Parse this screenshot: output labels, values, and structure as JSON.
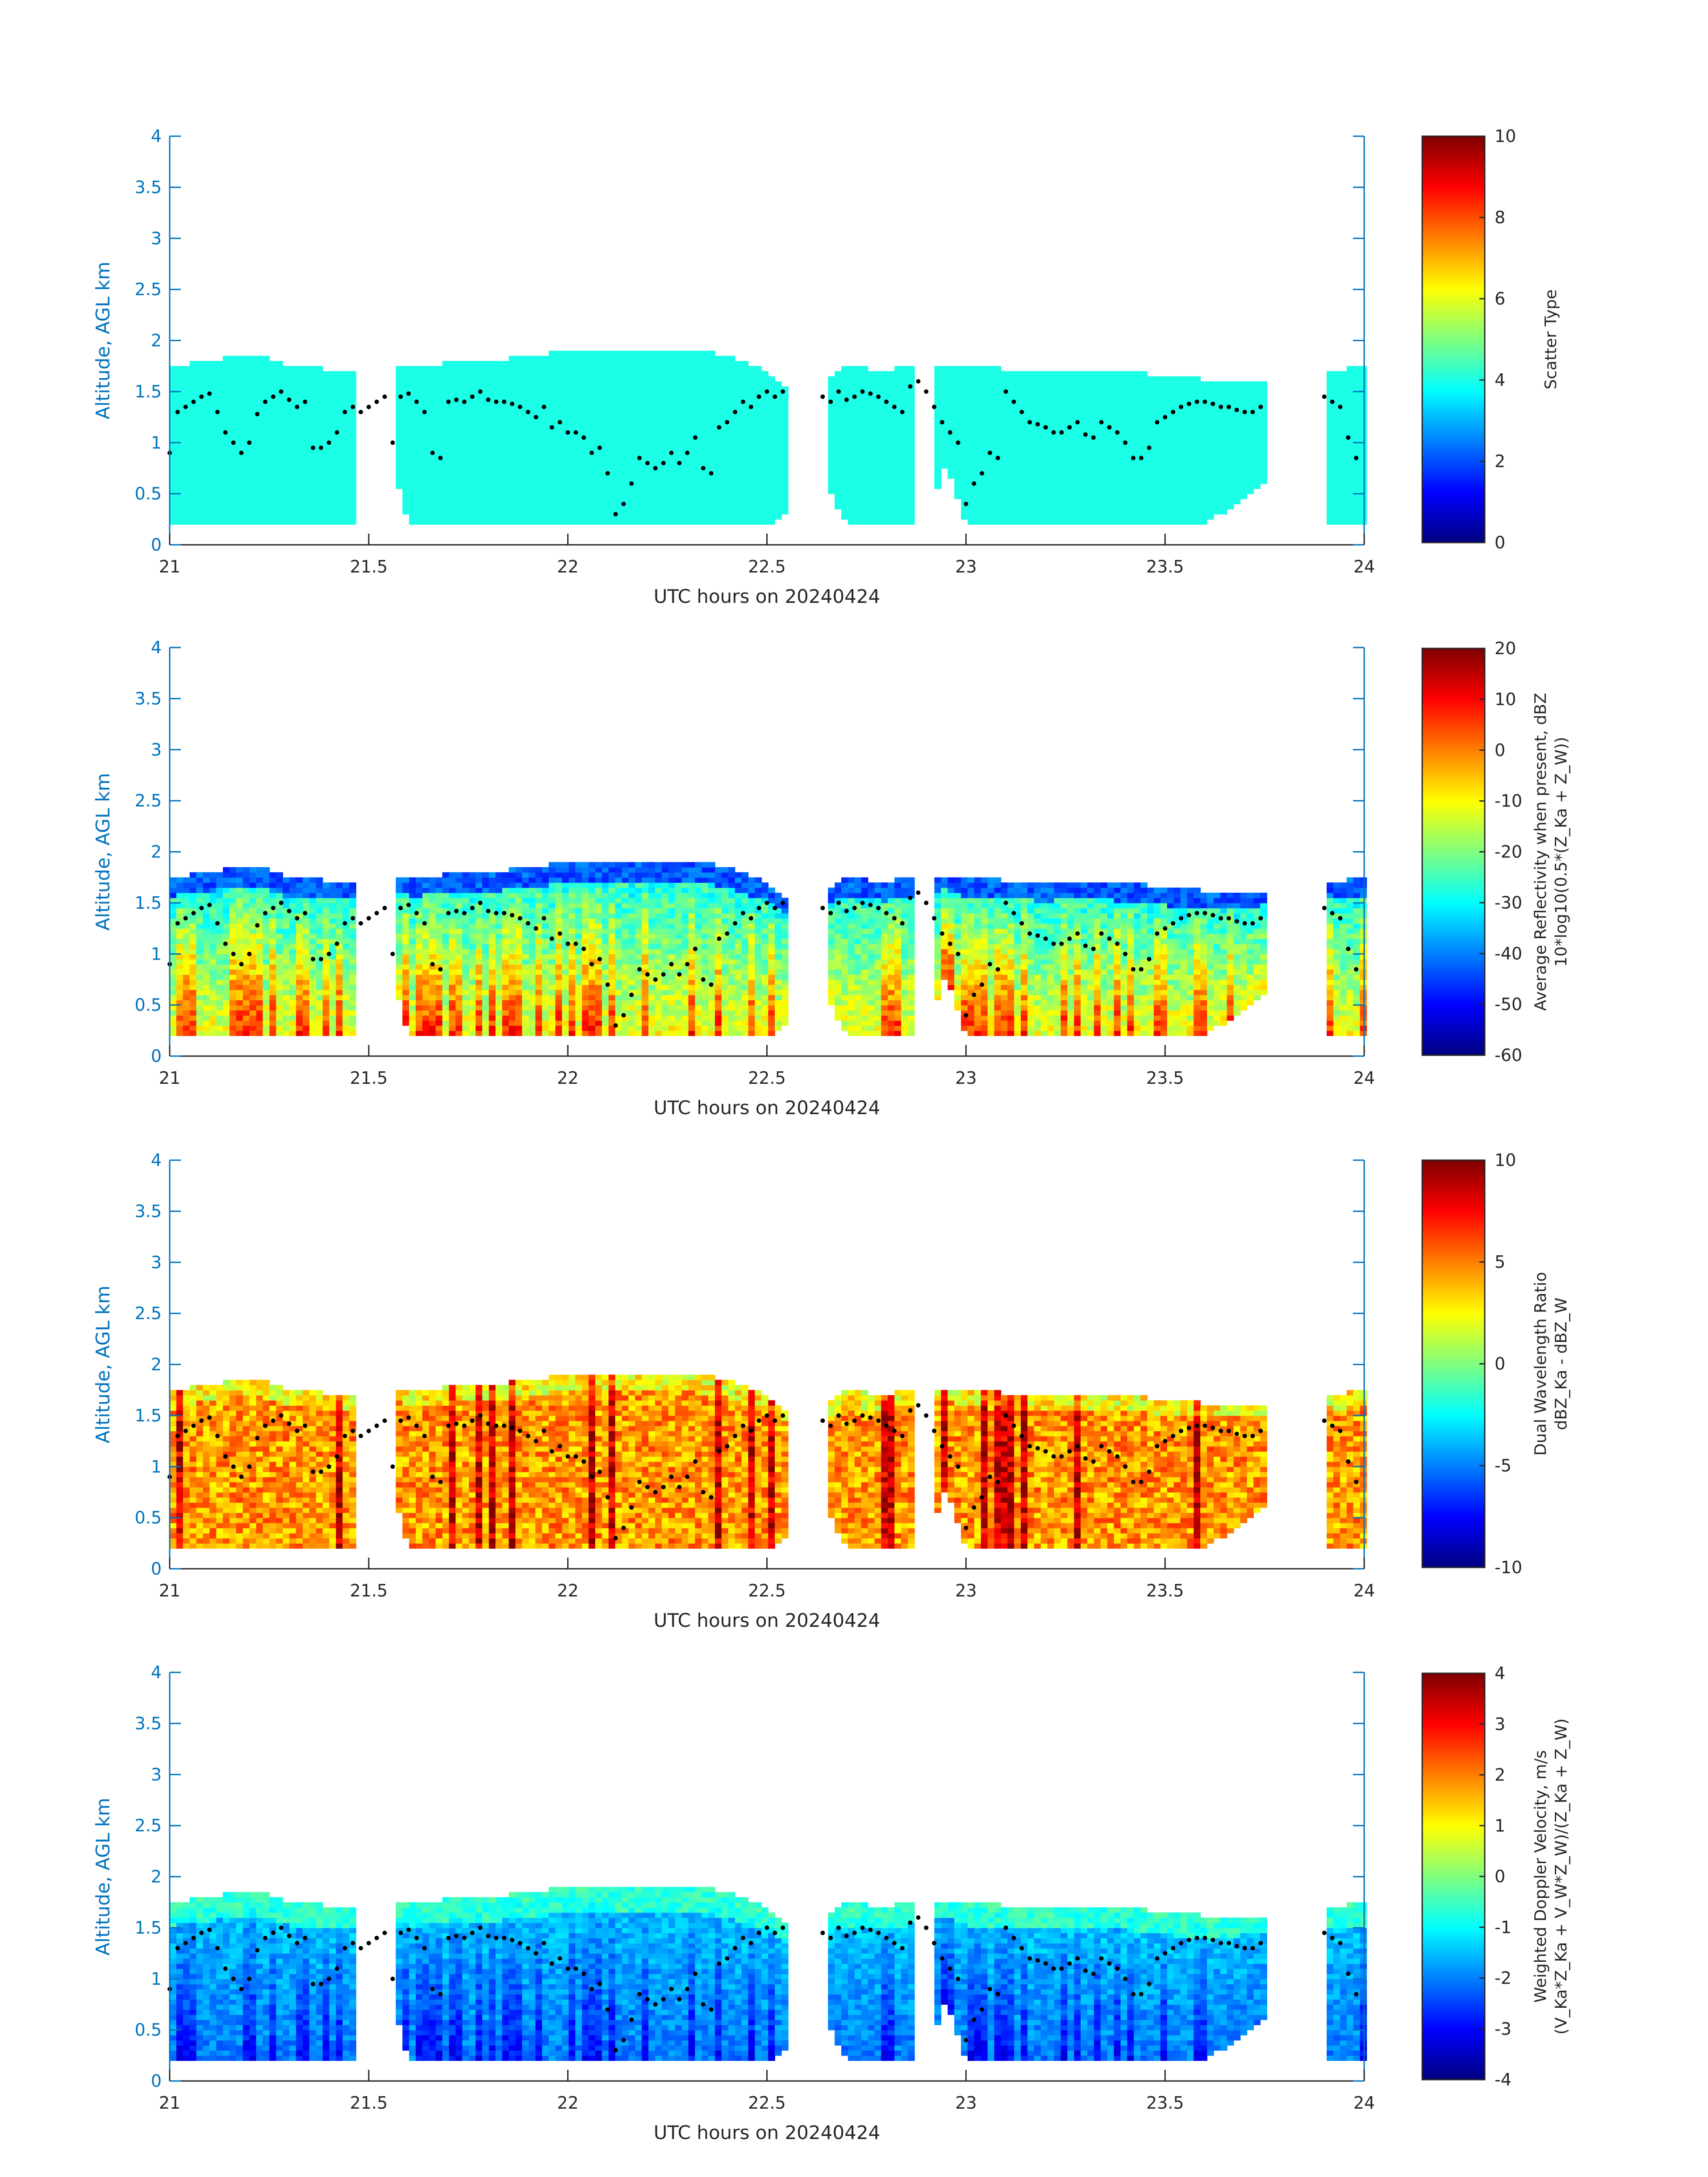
{
  "chart_data": [
    {
      "type": "heatmap",
      "xlabel": "UTC hours on 20240424",
      "ylabel": "Altitude, AGL km",
      "xlim": [
        21,
        24
      ],
      "ylim": [
        0,
        4
      ],
      "xticks": [
        "21",
        "21.5",
        "22",
        "22.5",
        "23",
        "23.5",
        "24"
      ],
      "yticks": [
        "0",
        "0.5",
        "1",
        "1.5",
        "2",
        "2.5",
        "3",
        "3.5",
        "4"
      ],
      "colorbar": {
        "label": [
          "Scatter Type"
        ],
        "ticks": [
          "0",
          "2",
          "4",
          "6",
          "8",
          "10"
        ],
        "clim": [
          0,
          10
        ],
        "colormap": "jet"
      },
      "field": "scatter_type"
    },
    {
      "type": "heatmap",
      "xlabel": "UTC hours on 20240424",
      "ylabel": "Altitude, AGL km",
      "xlim": [
        21,
        24
      ],
      "ylim": [
        0,
        4
      ],
      "xticks": [
        "21",
        "21.5",
        "22",
        "22.5",
        "23",
        "23.5",
        "24"
      ],
      "yticks": [
        "0",
        "0.5",
        "1",
        "1.5",
        "2",
        "2.5",
        "3",
        "3.5",
        "4"
      ],
      "colorbar": {
        "label": [
          "Average Reflectivity when present, dBZ",
          "10*log10(0.5*(Z_Ka + Z_W))"
        ],
        "ticks": [
          "-60",
          "-50",
          "-40",
          "-30",
          "-20",
          "-10",
          "0",
          "10",
          "20"
        ],
        "clim": [
          -60,
          20
        ],
        "colormap": "jet"
      },
      "field": "reflectivity"
    },
    {
      "type": "heatmap",
      "xlabel": "UTC hours on 20240424",
      "ylabel": "Altitude, AGL km",
      "xlim": [
        21,
        24
      ],
      "ylim": [
        0,
        4
      ],
      "xticks": [
        "21",
        "21.5",
        "22",
        "22.5",
        "23",
        "23.5",
        "24"
      ],
      "yticks": [
        "0",
        "0.5",
        "1",
        "1.5",
        "2",
        "2.5",
        "3",
        "3.5",
        "4"
      ],
      "colorbar": {
        "label": [
          "Dual Wavelength Ratio",
          "dBZ_Ka - dBZ_W"
        ],
        "ticks": [
          "-10",
          "-5",
          "0",
          "5",
          "10"
        ],
        "clim": [
          -10,
          10
        ],
        "colormap": "jet"
      },
      "field": "dwr"
    },
    {
      "type": "heatmap",
      "xlabel": "UTC hours on 20240424",
      "ylabel": "Altitude, AGL km",
      "xlim": [
        21,
        24
      ],
      "ylim": [
        0,
        4
      ],
      "xticks": [
        "21",
        "21.5",
        "22",
        "22.5",
        "23",
        "23.5",
        "24"
      ],
      "yticks": [
        "0",
        "0.5",
        "1",
        "1.5",
        "2",
        "2.5",
        "3",
        "3.5",
        "4"
      ],
      "colorbar": {
        "label": [
          "Weighted Doppler Velocity, m/s",
          "(V_Ka*Z_Ka + V_W*Z_W)/(Z_Ka + Z_W)"
        ],
        "ticks": [
          "-4",
          "-3",
          "-2",
          "-1",
          "0",
          "1",
          "2",
          "3",
          "4"
        ],
        "clim": [
          -4,
          4
        ],
        "colormap": "jet"
      },
      "field": "velocity"
    }
  ],
  "cloud_profile": {
    "x": [
      21.0,
      21.1,
      21.2,
      21.3,
      21.4,
      21.5,
      21.55,
      21.6,
      21.7,
      21.8,
      21.9,
      22.0,
      22.1,
      22.2,
      22.3,
      22.4,
      22.5,
      22.55,
      22.6,
      22.65,
      22.7,
      22.8,
      22.9,
      22.95,
      23.0,
      23.1,
      23.2,
      23.3,
      23.4,
      23.5,
      23.6,
      23.7,
      23.75,
      23.8,
      23.85,
      23.9,
      24.0
    ],
    "top": [
      1.75,
      1.8,
      1.88,
      1.75,
      1.72,
      1.72,
      1.74,
      1.75,
      1.78,
      1.8,
      1.85,
      1.9,
      1.9,
      1.92,
      1.92,
      1.85,
      1.7,
      1.55,
      null,
      1.6,
      1.75,
      1.7,
      1.8,
      1.75,
      1.75,
      1.72,
      1.7,
      1.72,
      1.7,
      1.65,
      1.62,
      1.6,
      1.6,
      null,
      null,
      1.7,
      1.75
    ],
    "base": [
      0.2,
      0.2,
      0.2,
      0.2,
      0.2,
      0.2,
      0.95,
      0.2,
      0.2,
      0.2,
      0.2,
      0.2,
      0.2,
      0.2,
      0.2,
      0.2,
      0.2,
      0.3,
      null,
      0.6,
      0.2,
      0.2,
      0.2,
      0.8,
      0.2,
      0.2,
      0.2,
      0.2,
      0.2,
      0.2,
      0.2,
      0.45,
      0.6,
      null,
      null,
      0.2,
      0.2
    ]
  },
  "boundary_dots": {
    "x": [
      21.0,
      21.02,
      21.04,
      21.06,
      21.08,
      21.1,
      21.12,
      21.14,
      21.16,
      21.18,
      21.2,
      21.22,
      21.24,
      21.26,
      21.28,
      21.3,
      21.32,
      21.34,
      21.36,
      21.38,
      21.4,
      21.42,
      21.44,
      21.46,
      21.48,
      21.5,
      21.52,
      21.54,
      21.56,
      21.58,
      21.6,
      21.62,
      21.64,
      21.66,
      21.68,
      21.7,
      21.72,
      21.74,
      21.76,
      21.78,
      21.8,
      21.82,
      21.84,
      21.86,
      21.88,
      21.9,
      21.92,
      21.94,
      21.96,
      21.98,
      22.0,
      22.02,
      22.04,
      22.06,
      22.08,
      22.1,
      22.12,
      22.14,
      22.16,
      22.18,
      22.2,
      22.22,
      22.24,
      22.26,
      22.28,
      22.3,
      22.32,
      22.34,
      22.36,
      22.38,
      22.4,
      22.42,
      22.44,
      22.46,
      22.48,
      22.5,
      22.52,
      22.54,
      22.64,
      22.66,
      22.68,
      22.7,
      22.72,
      22.74,
      22.76,
      22.78,
      22.8,
      22.82,
      22.84,
      22.86,
      22.88,
      22.9,
      22.92,
      22.94,
      22.96,
      22.98,
      23.0,
      23.02,
      23.04,
      23.06,
      23.08,
      23.1,
      23.12,
      23.14,
      23.16,
      23.18,
      23.2,
      23.22,
      23.24,
      23.26,
      23.28,
      23.3,
      23.32,
      23.34,
      23.36,
      23.38,
      23.4,
      23.42,
      23.44,
      23.46,
      23.48,
      23.5,
      23.52,
      23.54,
      23.56,
      23.58,
      23.6,
      23.62,
      23.64,
      23.66,
      23.68,
      23.7,
      23.72,
      23.74,
      23.9,
      23.92,
      23.94,
      23.96,
      23.98
    ],
    "y": [
      0.9,
      1.3,
      1.35,
      1.4,
      1.45,
      1.48,
      1.3,
      1.1,
      1.0,
      0.9,
      1.0,
      1.28,
      1.4,
      1.45,
      1.5,
      1.42,
      1.35,
      1.4,
      0.95,
      0.95,
      1.0,
      1.1,
      1.3,
      1.35,
      1.3,
      1.35,
      1.4,
      1.45,
      1.0,
      1.45,
      1.48,
      1.4,
      1.3,
      0.9,
      0.85,
      1.4,
      1.42,
      1.4,
      1.45,
      1.5,
      1.42,
      1.4,
      1.4,
      1.38,
      1.35,
      1.3,
      1.25,
      1.35,
      1.15,
      1.2,
      1.1,
      1.1,
      1.05,
      0.9,
      0.95,
      0.7,
      0.3,
      0.4,
      0.6,
      0.85,
      0.8,
      0.75,
      0.8,
      0.9,
      0.8,
      0.9,
      1.05,
      0.75,
      0.7,
      1.15,
      1.2,
      1.3,
      1.4,
      1.35,
      1.45,
      1.5,
      1.45,
      1.5,
      1.45,
      1.4,
      1.5,
      1.42,
      1.45,
      1.5,
      1.48,
      1.45,
      1.4,
      1.35,
      1.3,
      1.55,
      1.6,
      1.5,
      1.35,
      1.2,
      1.1,
      1.0,
      0.4,
      0.6,
      0.7,
      0.9,
      0.85,
      1.5,
      1.4,
      1.3,
      1.2,
      1.18,
      1.15,
      1.1,
      1.1,
      1.15,
      1.2,
      1.08,
      1.05,
      1.2,
      1.15,
      1.1,
      1.0,
      0.85,
      0.85,
      0.95,
      1.2,
      1.25,
      1.3,
      1.35,
      1.38,
      1.4,
      1.4,
      1.38,
      1.35,
      1.35,
      1.32,
      1.3,
      1.3,
      1.35,
      1.45,
      1.4,
      1.35,
      1.05,
      0.85
    ]
  }
}
